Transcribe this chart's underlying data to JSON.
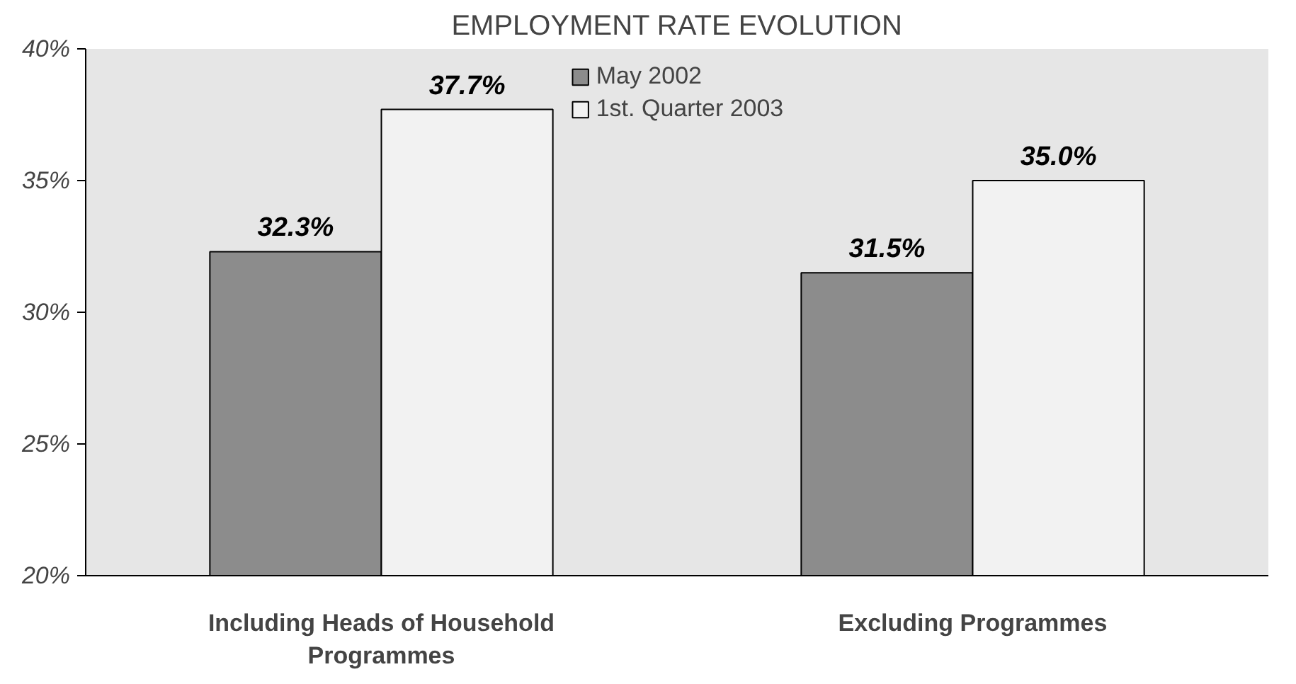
{
  "chart_data": {
    "type": "bar",
    "title": "EMPLOYMENT RATE EVOLUTION",
    "categories": [
      "Including Heads of Household Programmes",
      "Excluding Programmes"
    ],
    "series": [
      {
        "name": "May 2002",
        "color": "#8c8c8c",
        "values": [
          32.3,
          31.5
        ],
        "value_labels": [
          "32.3%",
          "31.5%"
        ]
      },
      {
        "name": "1st. Quarter 2003",
        "color": "#f2f2f2",
        "values": [
          37.7,
          35.0
        ],
        "value_labels": [
          "37.7%",
          "35.0%"
        ]
      }
    ],
    "ylim": [
      20,
      40
    ],
    "yticks": [
      {
        "value": 20,
        "label": "20%"
      },
      {
        "value": 25,
        "label": "25%"
      },
      {
        "value": 30,
        "label": "30%"
      },
      {
        "value": 35,
        "label": "35%"
      },
      {
        "value": 40,
        "label": "40%"
      }
    ],
    "legend": "top"
  }
}
